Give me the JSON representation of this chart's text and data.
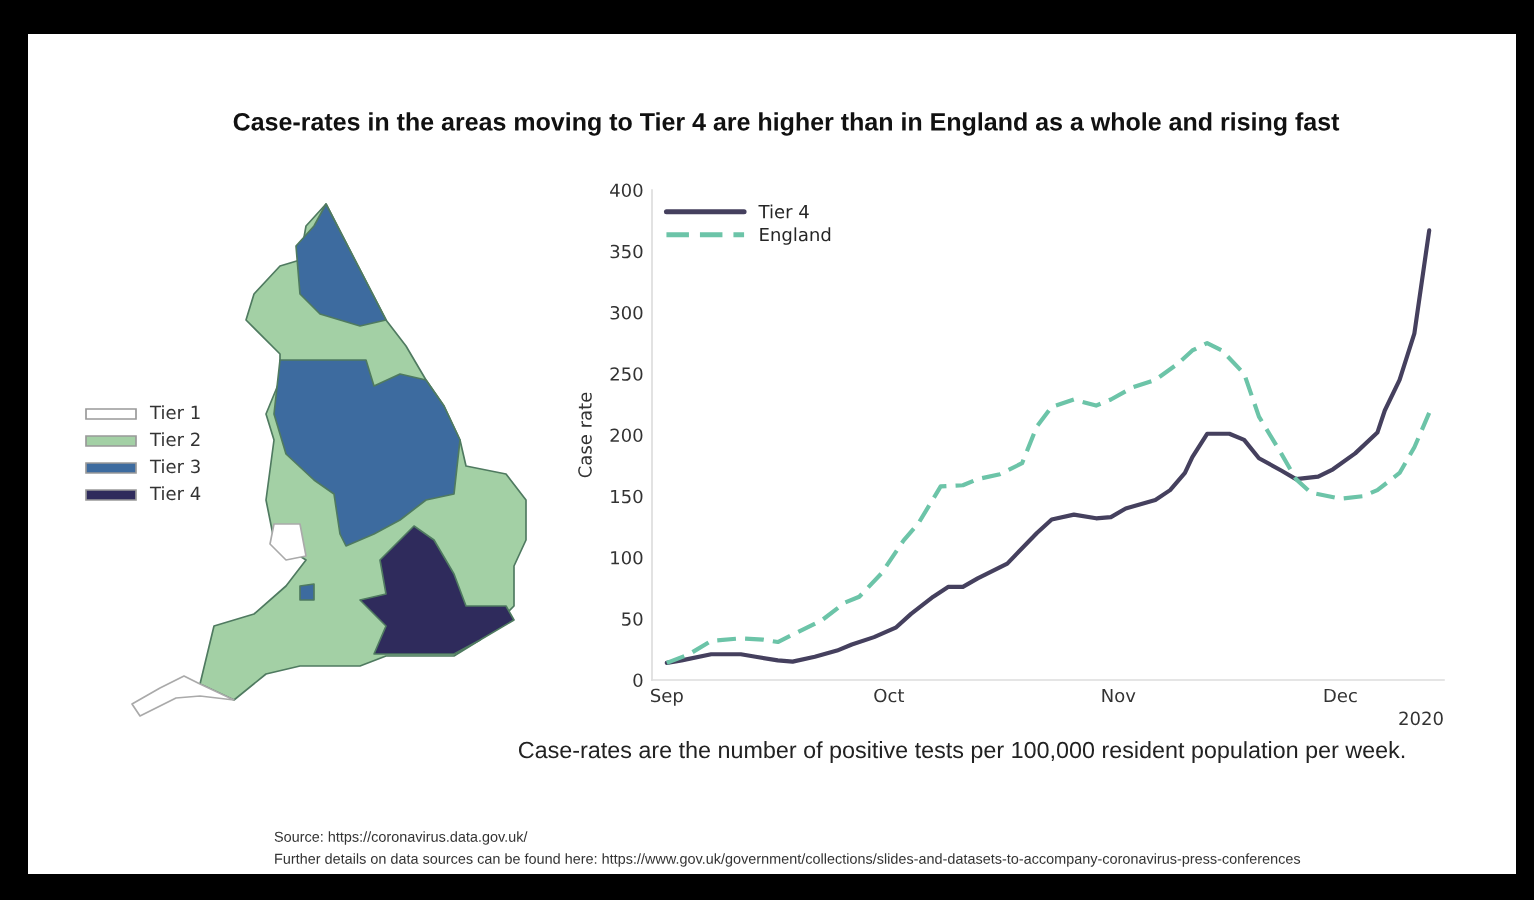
{
  "chart_data": [
    {
      "type": "other",
      "categories": [
        "Tier 1",
        "Tier 2",
        "Tier 3",
        "Tier 4"
      ],
      "colors": [
        "#ffffff",
        "#a3d0a5",
        "#3d6b9f",
        "#2f2b5c"
      ]
    },
    {
      "type": "line",
      "title": "Case-rates in the areas moving to Tier 4 are higher than in England as a whole and rising fast",
      "ylabel": "Case rate",
      "xlim": [
        "2020-08-30",
        "2020-12-15"
      ],
      "xticks": [
        {
          "value": "2020-09-01",
          "label": "Sep"
        },
        {
          "value": "2020-10-01",
          "label": "Oct"
        },
        {
          "value": "2020-11-01",
          "label": "Nov"
        },
        {
          "value": "2020-12-01",
          "label": "Dec"
        }
      ],
      "ylim": [
        0,
        400
      ],
      "yticks": [
        0,
        50,
        100,
        150,
        200,
        250,
        300,
        350,
        400
      ],
      "legend": "top left",
      "series": [
        {
          "name": "Tier 4",
          "color": "#45405e",
          "line_style": "solid",
          "x": [
            "2020-09-01",
            "2020-09-03",
            "2020-09-07",
            "2020-09-11",
            "2020-09-13",
            "2020-09-16",
            "2020-09-18",
            "2020-09-21",
            "2020-09-24",
            "2020-09-26",
            "2020-09-29",
            "2020-10-02",
            "2020-10-04",
            "2020-10-07",
            "2020-10-09",
            "2020-10-11",
            "2020-10-13",
            "2020-10-17",
            "2020-10-21",
            "2020-10-23",
            "2020-10-26",
            "2020-10-29",
            "2020-10-31",
            "2020-11-02",
            "2020-11-06",
            "2020-11-08",
            "2020-11-10",
            "2020-11-11",
            "2020-11-13",
            "2020-11-16",
            "2020-11-18",
            "2020-11-20",
            "2020-11-23",
            "2020-11-25",
            "2020-11-28",
            "2020-11-30",
            "2020-12-03",
            "2020-12-06",
            "2020-12-07",
            "2020-12-09",
            "2020-12-11",
            "2020-12-13"
          ],
          "values": [
            14,
            16,
            21,
            21,
            19,
            16,
            15,
            19,
            24,
            29,
            35,
            43,
            54,
            68,
            76,
            76,
            83,
            95,
            120,
            131,
            135,
            132,
            133,
            140,
            147,
            155,
            169,
            182,
            201,
            201,
            196,
            181,
            171,
            164,
            166,
            172,
            185,
            202,
            220,
            245,
            283,
            367
          ]
        },
        {
          "name": "England",
          "color": "#6cc4a8",
          "line_style": "dashed",
          "x": [
            "2020-09-01",
            "2020-09-04",
            "2020-09-07",
            "2020-09-11",
            "2020-09-14",
            "2020-09-16",
            "2020-09-18",
            "2020-09-22",
            "2020-09-25",
            "2020-09-27",
            "2020-09-30",
            "2020-10-03",
            "2020-10-05",
            "2020-10-08",
            "2020-10-11",
            "2020-10-13",
            "2020-10-16",
            "2020-10-19",
            "2020-10-21",
            "2020-10-23",
            "2020-10-26",
            "2020-10-29",
            "2020-10-31",
            "2020-11-03",
            "2020-11-06",
            "2020-11-09",
            "2020-11-11",
            "2020-11-13",
            "2020-11-15",
            "2020-11-18",
            "2020-11-20",
            "2020-11-23",
            "2020-11-25",
            "2020-11-27",
            "2020-12-01",
            "2020-12-04",
            "2020-12-06",
            "2020-12-09",
            "2020-12-11",
            "2020-12-13"
          ],
          "values": [
            14,
            21,
            32,
            34,
            33,
            31,
            37,
            49,
            63,
            68,
            87,
            114,
            128,
            158,
            159,
            164,
            168,
            177,
            207,
            223,
            229,
            224,
            229,
            239,
            245,
            258,
            269,
            275,
            269,
            250,
            215,
            185,
            164,
            153,
            148,
            150,
            155,
            169,
            190,
            218
          ]
        }
      ],
      "annotations": [
        "2020",
        "Case-rates are the number of positive tests per 100,000 resident population per week.",
        "Source: https://coronavirus.data.gov.uk/",
        "Further details on data sources can be found here: https://www.gov.uk/government/collections/slides-and-datasets-to-accompany-coronavirus-press-conferences"
      ]
    }
  ]
}
